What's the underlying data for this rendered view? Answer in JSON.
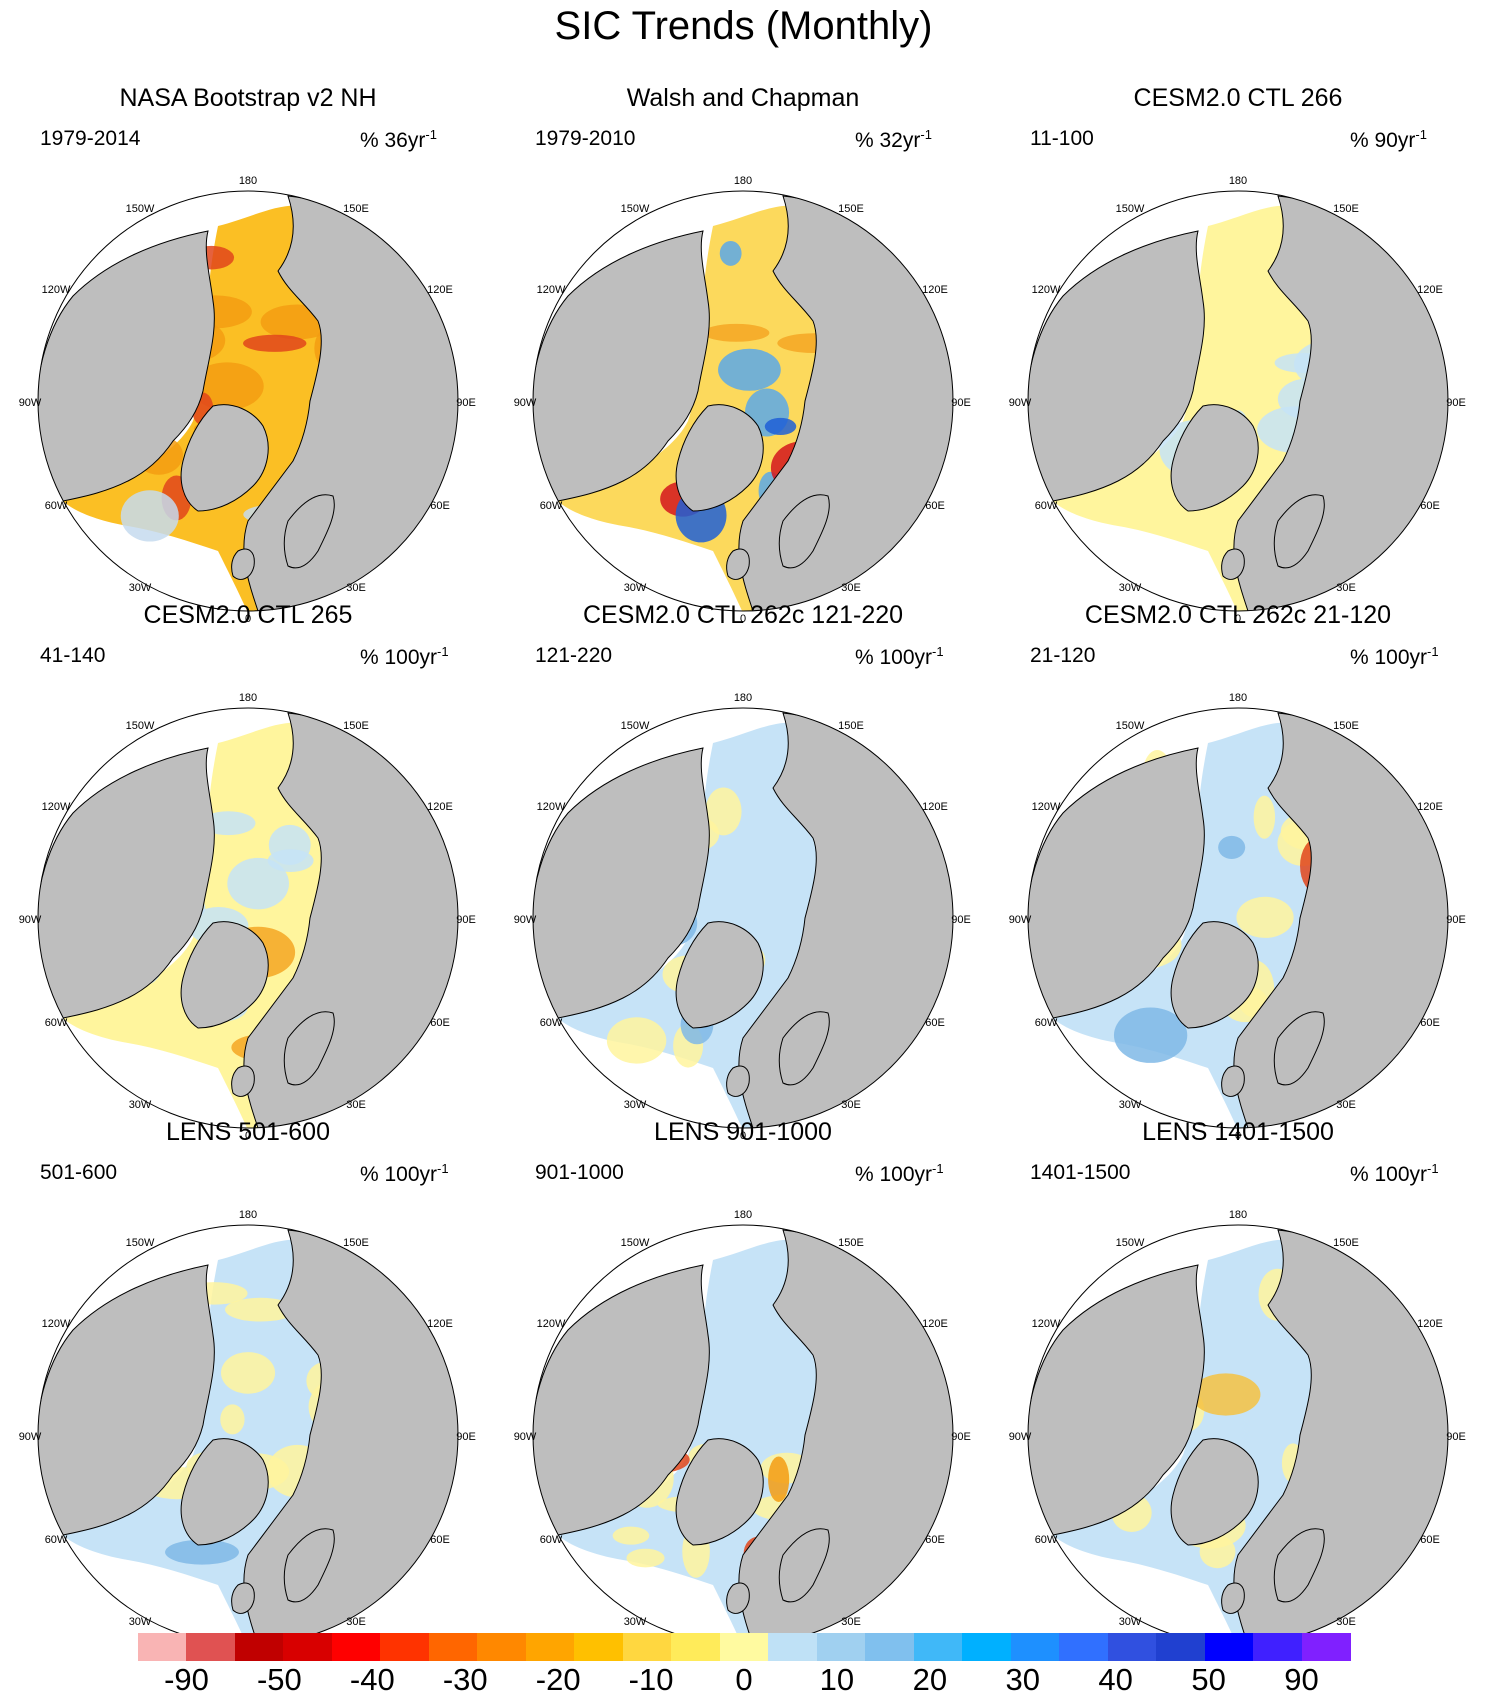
{
  "title": "SIC Trends (Monthly)",
  "colors": {
    "land": "#bebebe",
    "ocean": "#ffffff",
    "coast": "#000000"
  },
  "panels": [
    {
      "title": "NASA Bootstrap v2 NH",
      "period": "1979-2014",
      "units": "% 36yr",
      "units_exp": "-1",
      "fills": [
        [
          "#fbbf24",
          0.55
        ],
        [
          "#f39c12",
          0.25
        ],
        [
          "#e0451b",
          0.15
        ],
        [
          "#c6dbef",
          0.05
        ]
      ]
    },
    {
      "title": "Walsh and Chapman",
      "period": "1979-2010",
      "units": "% 32yr",
      "units_exp": "-1",
      "fills": [
        [
          "#fcd95c",
          0.55
        ],
        [
          "#f5a623",
          0.15
        ],
        [
          "#5aa8e8",
          0.15
        ],
        [
          "#d4151c",
          0.1
        ],
        [
          "#1f5fd6",
          0.05
        ]
      ]
    },
    {
      "title": "CESM2.0 CTL 266",
      "period": "11-100",
      "units": "% 90yr",
      "units_exp": "-1",
      "fills": [
        [
          "#fff59d",
          0.5
        ],
        [
          "#c6e3f7",
          0.45
        ],
        [
          "#7fb8e6",
          0.05
        ]
      ]
    },
    {
      "title": "CESM2.0 CTL 265",
      "period": "41-140",
      "units": "% 100yr",
      "units_exp": "-1",
      "fills": [
        [
          "#fff59d",
          0.55
        ],
        [
          "#c6e3f7",
          0.35
        ],
        [
          "#f5a623",
          0.1
        ]
      ]
    },
    {
      "title": "CESM2.0 CTL 262c 121-220",
      "period": "121-220",
      "units": "% 100yr",
      "units_exp": "-1",
      "fills": [
        [
          "#c6e3f7",
          0.6
        ],
        [
          "#fff59d",
          0.35
        ],
        [
          "#7fb8e6",
          0.05
        ]
      ]
    },
    {
      "title": "CESM2.0 CTL 262c 21-120",
      "period": "21-120",
      "units": "% 100yr",
      "units_exp": "-1",
      "fills": [
        [
          "#c6e3f7",
          0.5
        ],
        [
          "#fff59d",
          0.4
        ],
        [
          "#e0451b",
          0.05
        ],
        [
          "#7fb8e6",
          0.05
        ]
      ]
    },
    {
      "title": "LENS 501-600",
      "period": "501-600",
      "units": "% 100yr",
      "units_exp": "-1",
      "fills": [
        [
          "#c6e3f7",
          0.5
        ],
        [
          "#fff59d",
          0.45
        ],
        [
          "#7fb8e6",
          0.05
        ]
      ]
    },
    {
      "title": "LENS 901-1000",
      "period": "901-1000",
      "units": "% 100yr",
      "units_exp": "-1",
      "fills": [
        [
          "#c6e3f7",
          0.5
        ],
        [
          "#fff59d",
          0.35
        ],
        [
          "#f39c12",
          0.1
        ],
        [
          "#e0451b",
          0.05
        ]
      ]
    },
    {
      "title": "LENS 1401-1500",
      "period": "1401-1500",
      "units": "% 100yr",
      "units_exp": "-1",
      "fills": [
        [
          "#c6e3f7",
          0.55
        ],
        [
          "#fff59d",
          0.4
        ],
        [
          "#f5c242",
          0.05
        ]
      ]
    }
  ],
  "lon_labels": [
    "180",
    "150W",
    "150E",
    "120W",
    "120E",
    "90W",
    "90E",
    "60W",
    "60E",
    "30W",
    "30E",
    "0"
  ],
  "colorbar": {
    "colors": [
      "#f9b4b4",
      "#e05252",
      "#c00000",
      "#d80000",
      "#ff0000",
      "#ff3300",
      "#ff6600",
      "#ff8800",
      "#ffa500",
      "#ffc000",
      "#ffd740",
      "#ffeb5a",
      "#fffaa0",
      "#bfe1f6",
      "#a0d0f0",
      "#80c0ee",
      "#40b8f8",
      "#00b0ff",
      "#1e90ff",
      "#3070ff",
      "#3050e0",
      "#2040d0",
      "#0000ff",
      "#4020ff",
      "#8020ff"
    ],
    "labels": [
      "-90",
      "-50",
      "-40",
      "-30",
      "-20",
      "-10",
      "0",
      "10",
      "20",
      "30",
      "40",
      "50",
      "90"
    ]
  }
}
